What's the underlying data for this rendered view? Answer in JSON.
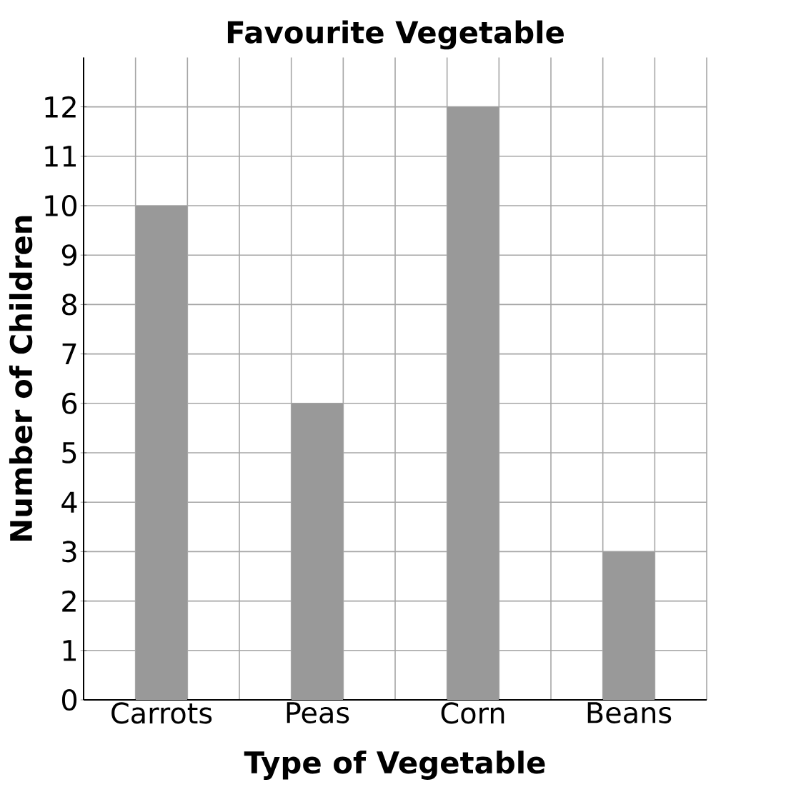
{
  "chart_data": {
    "type": "bar",
    "title": "Favourite Vegetable",
    "xlabel": "Type of Vegetable",
    "ylabel": "Number of Children",
    "categories": [
      "Carrots",
      "Peas",
      "Corn",
      "Beans"
    ],
    "values": [
      10,
      6,
      12,
      3
    ],
    "color": "#999999",
    "ylim": [
      0,
      13
    ],
    "yticks": [
      0,
      1,
      2,
      3,
      4,
      5,
      6,
      7,
      8,
      9,
      10,
      11,
      12
    ],
    "grid": true
  }
}
